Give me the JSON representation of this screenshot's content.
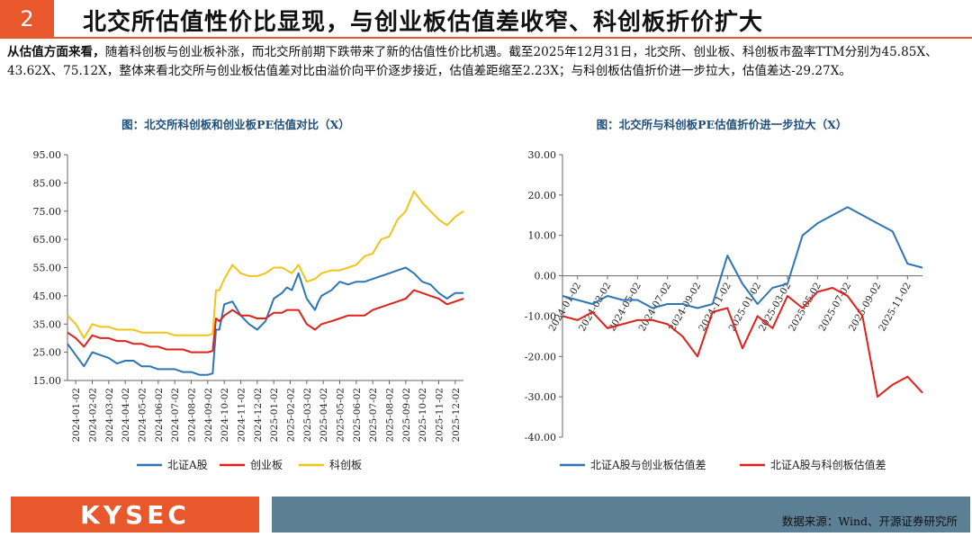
{
  "header": {
    "section_number": "2",
    "title": "北交所估值性价比显现，与创业板估值差收窄、科创板折价扩大"
  },
  "summary": {
    "lead": "从估值方面来看，",
    "text": "随着科创板与创业板补涨，而北交所前期下跌带来了新的估值性价比机遇。截至2025年12月31日，北交所、创业板、科创板市盈率TTM分别为45.85X、43.62X、75.12X，整体来看北交所与创业板估值差对比由溢价向平价逐步接近，估值差距缩至2.23X；与科创板估值折价进一步拉大，估值差达-29.27X。"
  },
  "colors": {
    "bse": "#2e75b6",
    "chinext": "#e0201b",
    "star": "#f0c419",
    "accent": "#e9572c",
    "footer_bar": "#5b7f95",
    "title_blue": "#1f4e79"
  },
  "chart_data": [
    {
      "type": "line",
      "title": "图：北交所科创板和创业板PE估值对比（X）",
      "ylim": [
        15,
        95
      ],
      "yticks": [
        "15.00",
        "25.00",
        "35.00",
        "45.00",
        "55.00",
        "65.00",
        "75.00",
        "85.00",
        "95.00"
      ],
      "x_labels": [
        "2024-01-02",
        "2024-02-02",
        "2024-03-02",
        "2024-04-02",
        "2024-05-02",
        "2024-06-02",
        "2024-07-02",
        "2024-08-02",
        "2024-09-02",
        "2024-10-02",
        "2024-11-02",
        "2024-12-02",
        "2025-01-02",
        "2025-02-02",
        "2025-03-02",
        "2025-04-02",
        "2025-05-02",
        "2025-06-02",
        "2025-07-02",
        "2025-08-02",
        "2025-09-02",
        "2025-10-02",
        "2025-11-02",
        "2025-12-02"
      ],
      "legend_position": "bottom",
      "grid": false,
      "series": [
        {
          "name": "北证A股",
          "color": "#2e75b6",
          "x": [
            0,
            0.5,
            1,
            1.5,
            2,
            2.5,
            3,
            3.5,
            4,
            4.5,
            5,
            5.5,
            6,
            6.5,
            7,
            7.5,
            8,
            8.5,
            8.8,
            9.0,
            9.2,
            9.5,
            10,
            10.5,
            11,
            11.5,
            12,
            12.5,
            13,
            13.3,
            13.6,
            14,
            14.5,
            15,
            15.2,
            15.4,
            16,
            16.5,
            17,
            17.5,
            18,
            18.5,
            19,
            19.5,
            20,
            20.5,
            21,
            21.5,
            22,
            22.5,
            23,
            23.5,
            24
          ],
          "values": [
            28,
            24,
            20,
            25,
            24,
            23,
            21,
            22,
            22,
            20,
            20,
            19,
            19,
            19,
            18,
            18,
            17,
            17,
            17.5,
            33,
            33,
            42,
            43,
            38,
            35,
            33,
            36,
            44,
            46,
            48,
            47,
            53,
            44,
            40,
            43,
            45,
            47,
            50,
            49,
            50,
            50,
            51,
            52,
            53,
            54,
            55,
            53,
            50,
            49,
            46,
            44,
            46,
            46
          ]
        },
        {
          "name": "创业板",
          "color": "#e0201b",
          "x": [
            0,
            0.5,
            1,
            1.5,
            2,
            2.5,
            3,
            3.5,
            4,
            4.5,
            5,
            5.5,
            6,
            6.5,
            7,
            7.5,
            8,
            8.5,
            8.8,
            9.0,
            9.2,
            9.5,
            10,
            10.5,
            11,
            11.5,
            12,
            12.5,
            13,
            13.3,
            13.6,
            14,
            14.5,
            15,
            15.2,
            15.4,
            16,
            16.5,
            17,
            17.5,
            18,
            18.5,
            19,
            19.5,
            20,
            20.5,
            21,
            21.5,
            22,
            22.5,
            23,
            23.5,
            24
          ],
          "values": [
            32,
            30,
            27,
            31,
            30,
            30,
            29,
            29,
            28,
            28,
            27,
            27,
            26,
            26,
            26,
            25,
            25,
            25,
            25.5,
            37,
            36,
            38,
            40,
            38,
            38,
            37,
            37,
            39,
            39,
            40,
            40,
            40,
            35,
            33,
            34,
            35,
            36,
            37,
            38,
            38,
            38,
            40,
            41,
            42,
            43,
            44,
            47,
            46,
            45,
            44,
            42,
            43,
            44
          ]
        },
        {
          "name": "科创板",
          "color": "#f0c419",
          "x": [
            0,
            0.5,
            1,
            1.5,
            2,
            2.5,
            3,
            3.5,
            4,
            4.5,
            5,
            5.5,
            6,
            6.5,
            7,
            7.5,
            8,
            8.5,
            8.8,
            9.0,
            9.2,
            9.5,
            10,
            10.5,
            11,
            11.5,
            12,
            12.5,
            13,
            13.3,
            13.6,
            14,
            14.5,
            15,
            15.2,
            15.4,
            16,
            16.5,
            17,
            17.5,
            18,
            18.5,
            19,
            19.5,
            20,
            20.5,
            21,
            21.5,
            22,
            22.5,
            23,
            23.5,
            24
          ],
          "values": [
            38,
            35,
            30,
            35,
            34,
            34,
            33,
            33,
            33,
            32,
            32,
            32,
            32,
            31,
            31,
            31,
            31,
            31,
            31.5,
            47,
            47,
            51,
            56,
            53,
            52,
            52,
            53,
            55,
            55,
            54,
            53,
            56,
            50,
            51,
            52,
            53,
            54,
            54,
            55,
            56,
            59,
            60,
            65,
            66,
            72,
            75,
            82,
            78,
            75,
            72,
            70,
            73,
            75
          ]
        }
      ]
    },
    {
      "type": "line",
      "title": "图：北交所与科创板PE估值折价进一步拉大（X）",
      "ylim": [
        -40,
        30
      ],
      "yticks": [
        "-40.00",
        "-30.00",
        "-20.00",
        "-10.00",
        "0.00",
        "10.00",
        "20.00",
        "30.00"
      ],
      "x_labels": [
        "2024-01-02",
        "2024-03-02",
        "2024-05-02",
        "2024-07-02",
        "2024-09-02",
        "2024-11-02",
        "2025-01-02",
        "2025-03-02",
        "2025-05-02",
        "2025-07-02",
        "2025-09-02",
        "2025-11-02"
      ],
      "legend_position": "bottom",
      "grid": false,
      "series": [
        {
          "name": "北证A股与创业板估值差",
          "color": "#2e75b6",
          "x": [
            0,
            0.5,
            1,
            1.5,
            2,
            2.5,
            3,
            3.5,
            4,
            4.5,
            5,
            5.5,
            6,
            6.5,
            7,
            7.5,
            8,
            8.5,
            9,
            9.5,
            10,
            10.5,
            11,
            11.5,
            12
          ],
          "values": [
            -5,
            -6,
            -7,
            -5,
            -6,
            -6,
            -8,
            -7,
            -7,
            -8,
            -7,
            5,
            -2,
            -7,
            -3,
            -2,
            10,
            13,
            15,
            17,
            15,
            13,
            11,
            3,
            2
          ]
        },
        {
          "name": "北证A股与科创板估值差",
          "color": "#e0201b",
          "x": [
            0,
            0.5,
            1,
            1.5,
            2,
            2.5,
            3,
            3.5,
            4,
            4.5,
            5,
            5.5,
            6,
            6.5,
            7,
            7.5,
            8,
            8.5,
            9,
            9.5,
            10,
            10.5,
            11,
            11.5,
            12
          ],
          "values": [
            -10,
            -11,
            -9,
            -13,
            -12,
            -11,
            -11,
            -12,
            -15,
            -20,
            -9,
            -8,
            -18,
            -10,
            -13,
            -5,
            -8,
            -4,
            -3,
            -5,
            -10,
            -30,
            -27,
            -25,
            -29
          ]
        }
      ]
    }
  ],
  "footer": {
    "logo": "KYSEC",
    "source": "数据来源：Wind、开源证券研究所"
  }
}
